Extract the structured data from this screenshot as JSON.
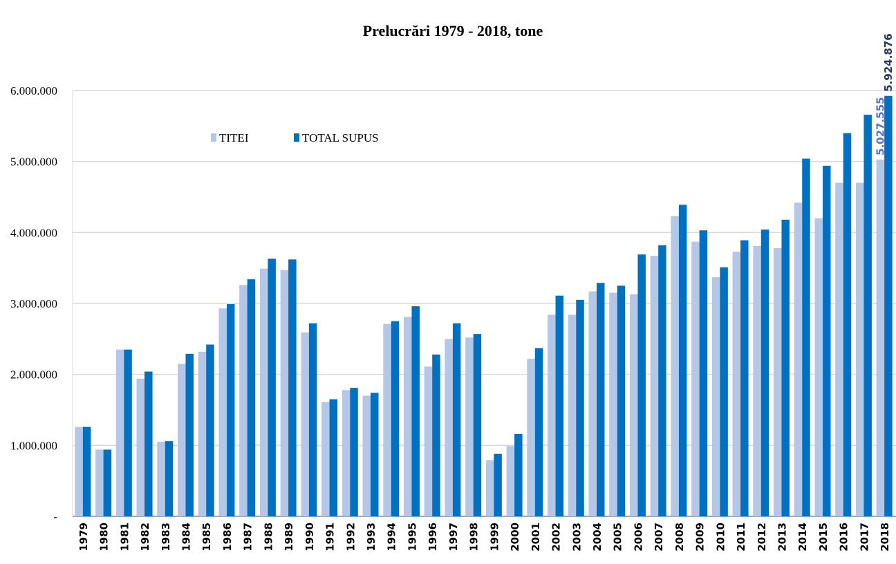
{
  "chart_data": {
    "type": "bar",
    "title": "Prelucrări  1979 - 2018, tone",
    "categories": [
      "1979",
      "1980",
      "1981",
      "1982",
      "1983",
      "1984",
      "1985",
      "1986",
      "1987",
      "1988",
      "1989",
      "1990",
      "1991",
      "1992",
      "1993",
      "1994",
      "1995",
      "1996",
      "1997",
      "1998",
      "1999",
      "2000",
      "2001",
      "2002",
      "2003",
      "2004",
      "2005",
      "2006",
      "2007",
      "2008",
      "2009",
      "2010",
      "2011",
      "2012",
      "2013",
      "2014",
      "2015",
      "2016",
      "2017",
      "2018"
    ],
    "series": [
      {
        "name": "TITEI",
        "color": "#b4c7e7",
        "label_color": "#4a72d8",
        "values": [
          1260000,
          940000,
          2350000,
          1940000,
          1050000,
          2150000,
          2320000,
          2930000,
          3260000,
          3490000,
          3470000,
          2590000,
          1610000,
          1780000,
          1700000,
          2710000,
          2810000,
          2110000,
          2500000,
          2520000,
          790000,
          990000,
          2220000,
          2840000,
          2840000,
          3170000,
          3150000,
          3130000,
          3670000,
          4230000,
          3870000,
          3370000,
          3730000,
          3810000,
          3780000,
          4420000,
          4200000,
          4700000,
          4700000,
          5027555
        ],
        "value_labels": [
          null,
          null,
          null,
          null,
          null,
          null,
          null,
          null,
          null,
          null,
          null,
          null,
          null,
          null,
          null,
          null,
          null,
          null,
          null,
          null,
          null,
          null,
          null,
          null,
          null,
          null,
          null,
          null,
          null,
          null,
          null,
          null,
          null,
          null,
          null,
          null,
          null,
          null,
          null,
          "5.027.555"
        ]
      },
      {
        "name": "TOTAL SUPUS",
        "color": "#0070c0",
        "label_color": "#1f3864",
        "values": [
          1260000,
          940000,
          2350000,
          2040000,
          1060000,
          2290000,
          2420000,
          2990000,
          3340000,
          3630000,
          3620000,
          2720000,
          1650000,
          1810000,
          1740000,
          2750000,
          2960000,
          2280000,
          2720000,
          2570000,
          880000,
          1160000,
          2370000,
          3110000,
          3050000,
          3290000,
          3250000,
          3690000,
          3820000,
          4390000,
          4030000,
          3510000,
          3890000,
          4040000,
          4180000,
          5040000,
          4940000,
          5400000,
          5660000,
          5924876
        ],
        "value_labels": [
          null,
          null,
          null,
          null,
          null,
          null,
          null,
          null,
          null,
          null,
          null,
          null,
          null,
          null,
          null,
          null,
          null,
          null,
          null,
          null,
          null,
          null,
          null,
          null,
          null,
          null,
          null,
          null,
          null,
          null,
          null,
          null,
          null,
          null,
          null,
          null,
          null,
          null,
          null,
          "5.924.876"
        ]
      }
    ],
    "ylim": [
      0,
      6000000
    ],
    "yticks": [
      {
        "value": 0,
        "label": "-"
      },
      {
        "value": 1000000,
        "label": "1.000.000"
      },
      {
        "value": 2000000,
        "label": "2.000.000"
      },
      {
        "value": 3000000,
        "label": "3.000.000"
      },
      {
        "value": 4000000,
        "label": "4.000.000"
      },
      {
        "value": 5000000,
        "label": "5.000.000"
      },
      {
        "value": 6000000,
        "label": "6.000.000"
      }
    ],
    "grid": true
  }
}
